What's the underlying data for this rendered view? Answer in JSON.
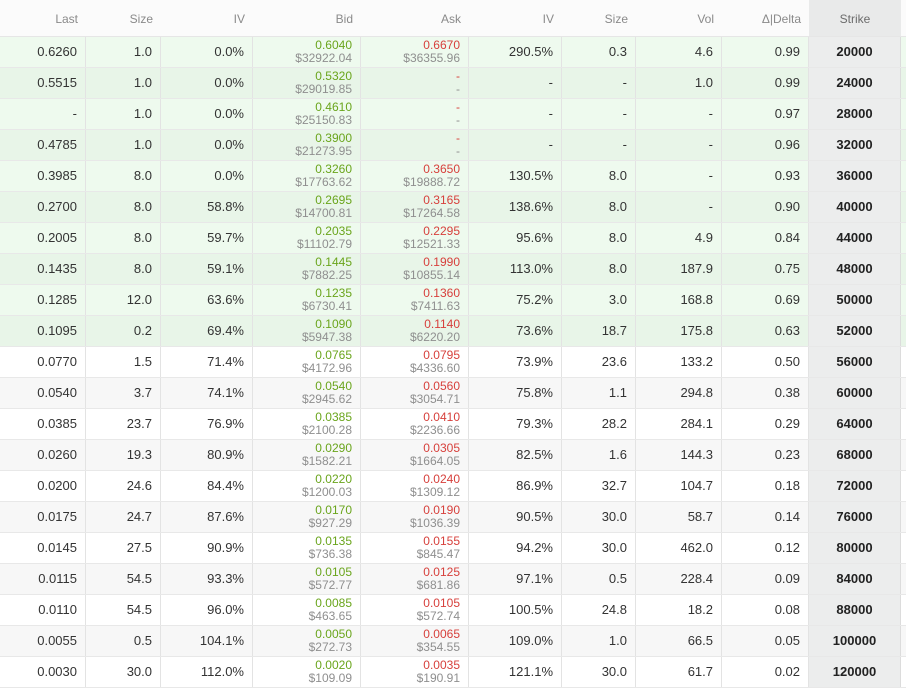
{
  "header": {
    "last": "Last",
    "size": "Size",
    "iv": "IV",
    "bid": "Bid",
    "ask": "Ask",
    "iv2": "IV",
    "size2": "Size",
    "vol": "Vol",
    "delta": "Δ|Delta",
    "strike": "Strike"
  },
  "rows": [
    {
      "last": "0.6260",
      "size": "1.0",
      "iv": "0.0%",
      "bid": "0.6040",
      "bid_usd": "$32922.04",
      "ask": "0.6670",
      "ask_usd": "$36355.96",
      "iv2": "290.5%",
      "size2": "0.3",
      "vol": "4.6",
      "delta": "0.99",
      "strike": "20000",
      "bg": "#eefaee"
    },
    {
      "last": "0.5515",
      "size": "1.0",
      "iv": "0.0%",
      "bid": "0.5320",
      "bid_usd": "$29019.85",
      "ask": "-",
      "ask_usd": "-",
      "iv2": "-",
      "size2": "-",
      "vol": "1.0",
      "delta": "0.99",
      "strike": "24000",
      "bg": "#e8f5e8"
    },
    {
      "last": "-",
      "size": "1.0",
      "iv": "0.0%",
      "bid": "0.4610",
      "bid_usd": "$25150.83",
      "ask": "-",
      "ask_usd": "-",
      "iv2": "-",
      "size2": "-",
      "vol": "-",
      "delta": "0.97",
      "strike": "28000",
      "bg": "#eefaee"
    },
    {
      "last": "0.4785",
      "size": "1.0",
      "iv": "0.0%",
      "bid": "0.3900",
      "bid_usd": "$21273.95",
      "ask": "-",
      "ask_usd": "-",
      "iv2": "-",
      "size2": "-",
      "vol": "-",
      "delta": "0.96",
      "strike": "32000",
      "bg": "#e8f5e8"
    },
    {
      "last": "0.3985",
      "size": "8.0",
      "iv": "0.0%",
      "bid": "0.3260",
      "bid_usd": "$17763.62",
      "ask": "0.3650",
      "ask_usd": "$19888.72",
      "iv2": "130.5%",
      "size2": "8.0",
      "vol": "-",
      "delta": "0.93",
      "strike": "36000",
      "bg": "#eefaee"
    },
    {
      "last": "0.2700",
      "size": "8.0",
      "iv": "58.8%",
      "bid": "0.2695",
      "bid_usd": "$14700.81",
      "ask": "0.3165",
      "ask_usd": "$17264.58",
      "iv2": "138.6%",
      "size2": "8.0",
      "vol": "-",
      "delta": "0.90",
      "strike": "40000",
      "bg": "#e8f5e8"
    },
    {
      "last": "0.2005",
      "size": "8.0",
      "iv": "59.7%",
      "bid": "0.2035",
      "bid_usd": "$11102.79",
      "ask": "0.2295",
      "ask_usd": "$12521.33",
      "iv2": "95.6%",
      "size2": "8.0",
      "vol": "4.9",
      "delta": "0.84",
      "strike": "44000",
      "bg": "#eefaee"
    },
    {
      "last": "0.1435",
      "size": "8.0",
      "iv": "59.1%",
      "bid": "0.1445",
      "bid_usd": "$7882.25",
      "ask": "0.1990",
      "ask_usd": "$10855.14",
      "iv2": "113.0%",
      "size2": "8.0",
      "vol": "187.9",
      "delta": "0.75",
      "strike": "48000",
      "bg": "#e8f5e8"
    },
    {
      "last": "0.1285",
      "size": "12.0",
      "iv": "63.6%",
      "bid": "0.1235",
      "bid_usd": "$6730.41",
      "ask": "0.1360",
      "ask_usd": "$7411.63",
      "iv2": "75.2%",
      "size2": "3.0",
      "vol": "168.8",
      "delta": "0.69",
      "strike": "50000",
      "bg": "#eefaee"
    },
    {
      "last": "0.1095",
      "size": "0.2",
      "iv": "69.4%",
      "bid": "0.1090",
      "bid_usd": "$5947.38",
      "ask": "0.1140",
      "ask_usd": "$6220.20",
      "iv2": "73.6%",
      "size2": "18.7",
      "vol": "175.8",
      "delta": "0.63",
      "strike": "52000",
      "bg": "#e8f5e8"
    },
    {
      "last": "0.0770",
      "size": "1.5",
      "iv": "71.4%",
      "bid": "0.0765",
      "bid_usd": "$4172.96",
      "ask": "0.0795",
      "ask_usd": "$4336.60",
      "iv2": "73.9%",
      "size2": "23.6",
      "vol": "133.2",
      "delta": "0.50",
      "strike": "56000",
      "bg": "#ffffff"
    },
    {
      "last": "0.0540",
      "size": "3.7",
      "iv": "74.1%",
      "bid": "0.0540",
      "bid_usd": "$2945.62",
      "ask": "0.0560",
      "ask_usd": "$3054.71",
      "iv2": "75.8%",
      "size2": "1.1",
      "vol": "294.8",
      "delta": "0.38",
      "strike": "60000",
      "bg": "#f7f7f7"
    },
    {
      "last": "0.0385",
      "size": "23.7",
      "iv": "76.9%",
      "bid": "0.0385",
      "bid_usd": "$2100.28",
      "ask": "0.0410",
      "ask_usd": "$2236.66",
      "iv2": "79.3%",
      "size2": "28.2",
      "vol": "284.1",
      "delta": "0.29",
      "strike": "64000",
      "bg": "#ffffff"
    },
    {
      "last": "0.0260",
      "size": "19.3",
      "iv": "80.9%",
      "bid": "0.0290",
      "bid_usd": "$1582.21",
      "ask": "0.0305",
      "ask_usd": "$1664.05",
      "iv2": "82.5%",
      "size2": "1.6",
      "vol": "144.3",
      "delta": "0.23",
      "strike": "68000",
      "bg": "#f7f7f7"
    },
    {
      "last": "0.0200",
      "size": "24.6",
      "iv": "84.4%",
      "bid": "0.0220",
      "bid_usd": "$1200.03",
      "ask": "0.0240",
      "ask_usd": "$1309.12",
      "iv2": "86.9%",
      "size2": "32.7",
      "vol": "104.7",
      "delta": "0.18",
      "strike": "72000",
      "bg": "#ffffff"
    },
    {
      "last": "0.0175",
      "size": "24.7",
      "iv": "87.6%",
      "bid": "0.0170",
      "bid_usd": "$927.29",
      "ask": "0.0190",
      "ask_usd": "$1036.39",
      "iv2": "90.5%",
      "size2": "30.0",
      "vol": "58.7",
      "delta": "0.14",
      "strike": "76000",
      "bg": "#f7f7f7"
    },
    {
      "last": "0.0145",
      "size": "27.5",
      "iv": "90.9%",
      "bid": "0.0135",
      "bid_usd": "$736.38",
      "ask": "0.0155",
      "ask_usd": "$845.47",
      "iv2": "94.2%",
      "size2": "30.0",
      "vol": "462.0",
      "delta": "0.12",
      "strike": "80000",
      "bg": "#ffffff"
    },
    {
      "last": "0.0115",
      "size": "54.5",
      "iv": "93.3%",
      "bid": "0.0105",
      "bid_usd": "$572.77",
      "ask": "0.0125",
      "ask_usd": "$681.86",
      "iv2": "97.1%",
      "size2": "0.5",
      "vol": "228.4",
      "delta": "0.09",
      "strike": "84000",
      "bg": "#f7f7f7"
    },
    {
      "last": "0.0110",
      "size": "54.5",
      "iv": "96.0%",
      "bid": "0.0085",
      "bid_usd": "$463.65",
      "ask": "0.0105",
      "ask_usd": "$572.74",
      "iv2": "100.5%",
      "size2": "24.8",
      "vol": "18.2",
      "delta": "0.08",
      "strike": "88000",
      "bg": "#ffffff"
    },
    {
      "last": "0.0055",
      "size": "0.5",
      "iv": "104.1%",
      "bid": "0.0050",
      "bid_usd": "$272.73",
      "ask": "0.0065",
      "ask_usd": "$354.55",
      "iv2": "109.0%",
      "size2": "1.0",
      "vol": "66.5",
      "delta": "0.05",
      "strike": "100000",
      "bg": "#f7f7f7"
    },
    {
      "last": "0.0030",
      "size": "30.0",
      "iv": "112.0%",
      "bid": "0.0020",
      "bid_usd": "$109.09",
      "ask": "0.0035",
      "ask_usd": "$190.91",
      "iv2": "121.1%",
      "size2": "30.0",
      "vol": "61.7",
      "delta": "0.02",
      "strike": "120000",
      "bg": "#ffffff"
    }
  ]
}
